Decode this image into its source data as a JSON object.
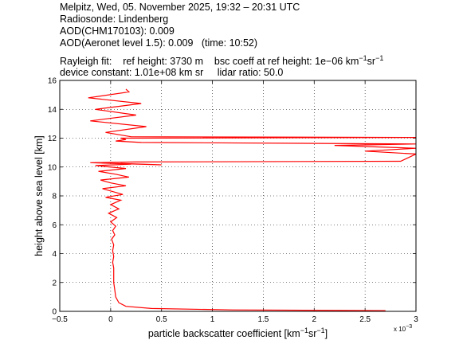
{
  "header": {
    "line1": "Melpitz, Wed, 05. November 2025, 19:32 – 20:31 UTC",
    "line2": "Radiosonde: Lindenberg",
    "line3": "AOD(CHM170103): 0.009",
    "line4": "AOD(Aeronet level 1.5): 0.009   (time: 10:52)",
    "rayleigh_label": "Rayleigh fit:",
    "ref_height": "ref height: 3730 m",
    "bsc_coeff_text": "bsc coeff at ref height: 1e−06 km",
    "bsc_unit_sup1": "−1",
    "bsc_unit_sr": "sr",
    "bsc_unit_sup2": "−1",
    "device_constant": "device constant: 1.01e+08 km sr",
    "lidar_ratio": "lidar ratio: 50.0"
  },
  "chart_data": {
    "type": "line",
    "xlabel_main": "particle backscatter coefficient [km",
    "xlabel_sup1": "−1",
    "xlabel_sr": "sr",
    "xlabel_sup2": "−1",
    "xlabel_end": "]",
    "ylabel": "height above sea level [km]",
    "x_exponent_label": "x 10",
    "x_exponent_sup": "−3",
    "xlim": [
      -0.5,
      3.0
    ],
    "ylim": [
      0,
      16
    ],
    "x_ticks": [
      "−0.5",
      "0",
      "0.5",
      "1",
      "1.5",
      "2",
      "2.5",
      "3"
    ],
    "y_ticks": [
      "0",
      "2",
      "4",
      "6",
      "8",
      "10",
      "12",
      "14",
      "16"
    ],
    "grid": true,
    "line_color": "#ff0000",
    "series": [
      {
        "x": [
          2.7,
          1.2,
          0.4,
          0.15,
          0.08,
          0.05,
          0.04,
          0.03,
          0.03,
          0.03,
          0.02,
          0.03,
          0.02,
          0.03,
          0.01,
          0.04,
          0.02,
          0.05,
          0.0,
          0.06,
          -0.02,
          0.08,
          0.0,
          0.1,
          -0.05,
          0.12,
          0.02,
          -0.08,
          0.15,
          0.0,
          -0.1,
          0.18,
          0.05,
          -0.12,
          0.15,
          -0.15,
          0.2,
          0.1,
          0.5,
          -0.2,
          0.25,
          2.85,
          3.0,
          2.5,
          3.0,
          2.2,
          3.0,
          0.3,
          0.05,
          0.15,
          0.1,
          3.0,
          0.2,
          -0.05,
          0.35,
          -0.2,
          0.25,
          -0.15,
          0.3,
          -0.22,
          0.18,
          0.15
        ],
        "y": [
          0.05,
          0.1,
          0.2,
          0.35,
          0.6,
          1.0,
          1.5,
          2.0,
          2.5,
          3.0,
          3.4,
          3.8,
          4.2,
          4.6,
          5.0,
          5.3,
          5.6,
          5.9,
          6.2,
          6.5,
          6.8,
          7.1,
          7.4,
          7.7,
          7.9,
          8.1,
          8.3,
          8.5,
          8.7,
          8.9,
          9.1,
          9.3,
          9.5,
          9.7,
          9.9,
          10.1,
          10.2,
          10.25,
          10.15,
          10.3,
          10.35,
          10.4,
          10.9,
          11.1,
          11.3,
          11.5,
          11.6,
          11.7,
          11.8,
          11.9,
          12.0,
          12.05,
          12.1,
          12.4,
          12.8,
          13.2,
          13.6,
          14.0,
          14.4,
          14.8,
          15.2,
          15.4
        ]
      }
    ]
  }
}
